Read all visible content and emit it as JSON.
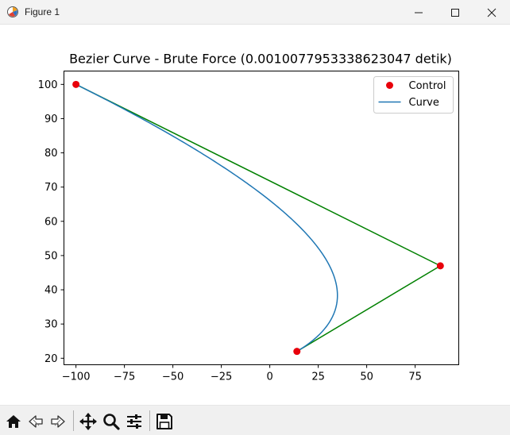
{
  "window": {
    "title": "Figure 1",
    "app_icon": "matplotlib-figure-icon",
    "controls": [
      "minimize-icon",
      "maximize-icon",
      "close-icon"
    ]
  },
  "toolbar": {
    "icons": [
      "home-icon",
      "back-arrow-icon",
      "forward-arrow-icon",
      "pan-icon",
      "zoom-icon",
      "configure-subplots-icon",
      "save-icon"
    ]
  },
  "chart_data": {
    "type": "line",
    "title": "Bezier Curve - Brute Force (0.0010077953338623047 detik)",
    "xlabel": "",
    "ylabel": "",
    "xlim": [
      -106.2,
      97.5
    ],
    "ylim": [
      18.1,
      103.9
    ],
    "xticks": [
      -100,
      -75,
      -50,
      -25,
      0,
      25,
      50,
      75
    ],
    "xtick_labels": [
      "−100",
      "−75",
      "−50",
      "−25",
      "0",
      "25",
      "50",
      "75"
    ],
    "yticks": [
      20,
      30,
      40,
      50,
      60,
      70,
      80,
      90,
      100
    ],
    "ytick_labels": [
      "20",
      "30",
      "40",
      "50",
      "60",
      "70",
      "80",
      "90",
      "100"
    ],
    "grid": false,
    "legend": {
      "position": "upper right",
      "entries": [
        {
          "label": "Control",
          "marker": "circle",
          "color": "#e8000b"
        },
        {
          "label": "Curve",
          "marker": "line",
          "color": "#1f77b4"
        }
      ]
    },
    "control_points": {
      "name": "Control",
      "color": "#e8000b",
      "points": [
        [
          -100,
          100
        ],
        [
          88,
          47
        ],
        [
          14,
          22
        ]
      ]
    },
    "control_polygon": {
      "color": "#008000",
      "points": [
        [
          -100,
          100
        ],
        [
          88,
          47
        ],
        [
          14,
          22
        ]
      ]
    },
    "series": [
      {
        "name": "Curve",
        "color": "#1f77b4",
        "construction": "quadratic bezier from control_points"
      }
    ]
  }
}
